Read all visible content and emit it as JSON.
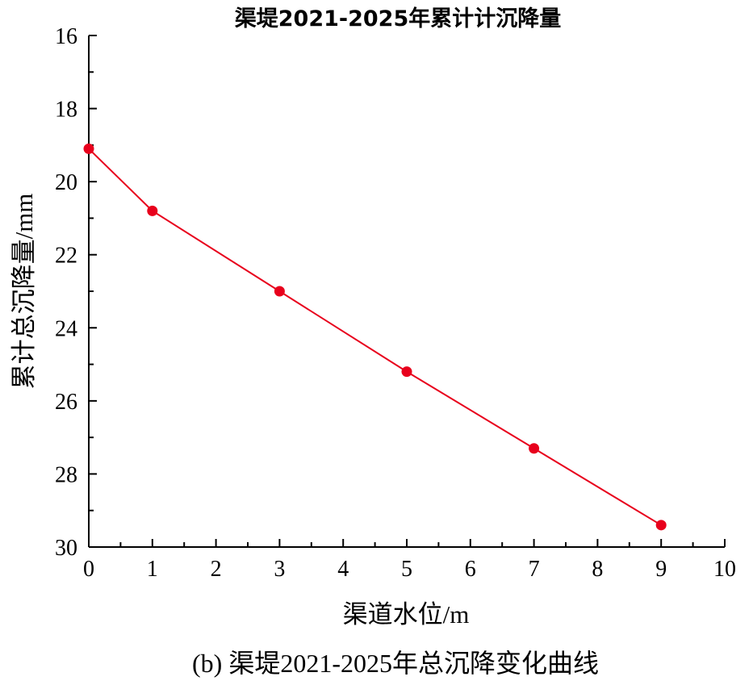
{
  "chart_data": {
    "type": "line",
    "title": "渠堤2021-2025年累计计沉降量",
    "xlabel": "渠道水位/m",
    "ylabel": "累计总沉降量/mm",
    "caption": "(b) 渠堤2021-2025年总沉降变化曲线",
    "xlim": [
      0,
      10
    ],
    "ylim": [
      16,
      30
    ],
    "y_inverted": true,
    "x_ticks": [
      0,
      1,
      2,
      3,
      4,
      5,
      6,
      7,
      8,
      9,
      10
    ],
    "y_ticks": [
      16,
      18,
      20,
      22,
      24,
      26,
      28,
      30
    ],
    "grid": false,
    "series": [
      {
        "x": [
          0,
          1,
          3,
          5,
          7,
          9
        ],
        "y": [
          19.1,
          20.8,
          23.0,
          25.2,
          27.3,
          29.4
        ]
      }
    ],
    "colors": {
      "series": "#e8001c",
      "axis": "#000000"
    }
  }
}
